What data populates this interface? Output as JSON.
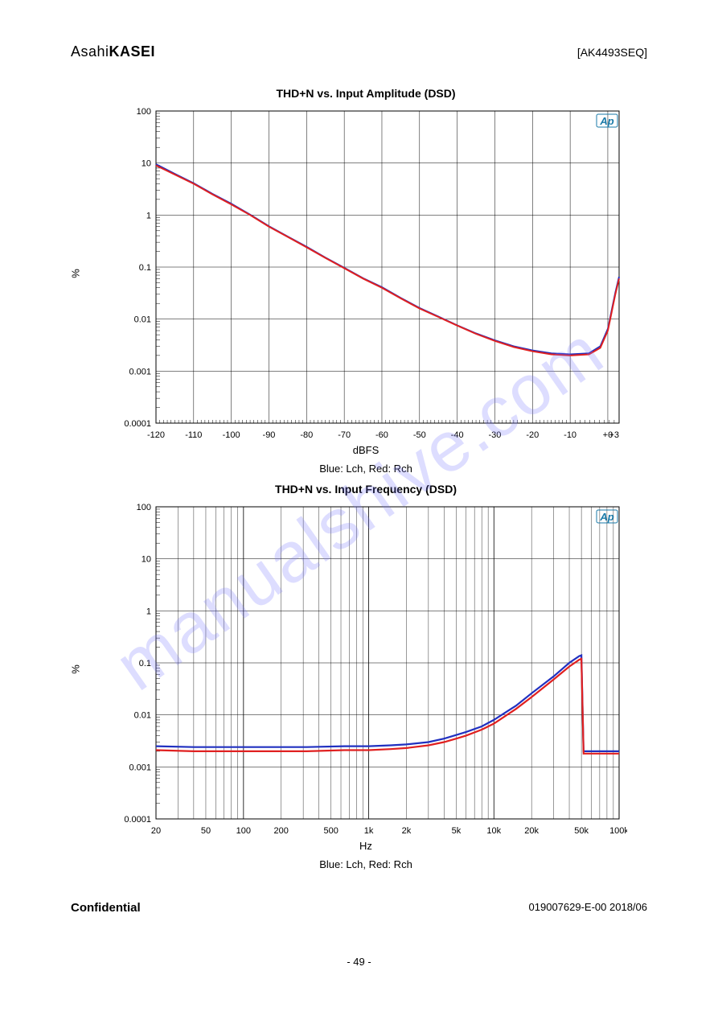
{
  "brand": {
    "asahi": "Asahi",
    "kasei": "KASEI"
  },
  "part_number": "[AK4493SEQ]",
  "watermark": "manualshive.com",
  "footer": "- 49 -",
  "confidential": "Confidential",
  "date_note": "019007629-E-00  2018/06",
  "chart1": {
    "title": "THD+N vs. Input Amplitude (DSD)",
    "xlabel": "dBFS",
    "ylabel": "%",
    "plot_bg": "#ffffff",
    "grid_color": "#000000",
    "series_colors": [
      "#e02020",
      "#2030c0"
    ],
    "badge": "Ap",
    "x_domain": [
      -120,
      3
    ],
    "x_ticks": [
      -120,
      -110,
      -100,
      -90,
      -80,
      -70,
      -60,
      -50,
      -40,
      -30,
      -20,
      -10,
      0
    ],
    "x_tick_labels": [
      "-120",
      "-110",
      "-100",
      "-90",
      "-80",
      "-70",
      "-60",
      "-50",
      "-40",
      "-30",
      "-20",
      "-10",
      "+0"
    ],
    "x_last_label": "+3",
    "y_domain_log": [
      0.0001,
      100
    ],
    "y_ticks_log": [
      0.0001,
      0.001,
      0.01,
      0.1,
      1,
      10,
      100
    ],
    "y_labels": [
      "0.0001",
      "0.001",
      "0.01",
      "0.1",
      "1",
      "10",
      "100"
    ],
    "colors_note": "“Blue: Lch, Red: Rch”",
    "colors_text": "Blue: Lch, Red: Rch",
    "series_red": [
      [
        -120,
        9
      ],
      [
        -115,
        6
      ],
      [
        -110,
        4
      ],
      [
        -105,
        2.5
      ],
      [
        -100,
        1.6
      ],
      [
        -95,
        1.0
      ],
      [
        -90,
        0.6
      ],
      [
        -85,
        0.38
      ],
      [
        -80,
        0.24
      ],
      [
        -75,
        0.15
      ],
      [
        -70,
        0.095
      ],
      [
        -65,
        0.06
      ],
      [
        -60,
        0.04
      ],
      [
        -55,
        0.025
      ],
      [
        -50,
        0.016
      ],
      [
        -45,
        0.011
      ],
      [
        -40,
        0.0075
      ],
      [
        -35,
        0.0052
      ],
      [
        -30,
        0.0038
      ],
      [
        -25,
        0.0029
      ],
      [
        -20,
        0.0024
      ],
      [
        -15,
        0.0021
      ],
      [
        -10,
        0.002
      ],
      [
        -5,
        0.0021
      ],
      [
        -2,
        0.0028
      ],
      [
        0,
        0.006
      ],
      [
        2,
        0.03
      ],
      [
        3,
        0.06
      ]
    ],
    "series_blue": [
      [
        -120,
        9.5
      ],
      [
        -115,
        6.2
      ],
      [
        -110,
        4.1
      ],
      [
        -105,
        2.55
      ],
      [
        -100,
        1.65
      ],
      [
        -95,
        1.02
      ],
      [
        -90,
        0.61
      ],
      [
        -85,
        0.385
      ],
      [
        -80,
        0.245
      ],
      [
        -75,
        0.152
      ],
      [
        -70,
        0.097
      ],
      [
        -65,
        0.061
      ],
      [
        -60,
        0.041
      ],
      [
        -55,
        0.0255
      ],
      [
        -50,
        0.0163
      ],
      [
        -45,
        0.0112
      ],
      [
        -40,
        0.0076
      ],
      [
        -35,
        0.0053
      ],
      [
        -30,
        0.0039
      ],
      [
        -25,
        0.003
      ],
      [
        -20,
        0.0025
      ],
      [
        -15,
        0.0022
      ],
      [
        -10,
        0.0021
      ],
      [
        -5,
        0.0022
      ],
      [
        -2,
        0.003
      ],
      [
        0,
        0.0065
      ],
      [
        2,
        0.032
      ],
      [
        3,
        0.065
      ]
    ]
  },
  "chart2": {
    "title": "THD+N vs. Input Frequency (DSD)",
    "xlabel": "Hz",
    "ylabel": "%",
    "badge": "Ap",
    "series_colors": [
      "#e02020",
      "#2030c0"
    ],
    "x_domain_log": [
      20,
      100000
    ],
    "x_ticks_log": [
      20,
      50,
      100,
      200,
      500,
      1000,
      2000,
      5000,
      10000,
      20000,
      50000,
      100000
    ],
    "x_tick_labels": [
      "20",
      "50",
      "100",
      "200",
      "500",
      "1k",
      "2k",
      "5k",
      "10k",
      "20k",
      "50k",
      "100k"
    ],
    "y_domain_log": [
      0.0001,
      100
    ],
    "y_ticks_log": [
      0.0001,
      0.001,
      0.01,
      0.1,
      1,
      10,
      100
    ],
    "y_labels": [
      "0.0001",
      "0.001",
      "0.01",
      "0.1",
      "1",
      "10",
      "100"
    ],
    "colors_text": "Blue: Lch, Red: Rch",
    "series_red": [
      [
        20,
        0.0021
      ],
      [
        40,
        0.002
      ],
      [
        80,
        0.002
      ],
      [
        160,
        0.002
      ],
      [
        320,
        0.002
      ],
      [
        640,
        0.0021
      ],
      [
        1000,
        0.0021
      ],
      [
        1500,
        0.0022
      ],
      [
        2000,
        0.0023
      ],
      [
        3000,
        0.0026
      ],
      [
        4000,
        0.003
      ],
      [
        5000,
        0.0035
      ],
      [
        6000,
        0.004
      ],
      [
        8000,
        0.0052
      ],
      [
        10000,
        0.0068
      ],
      [
        15000,
        0.013
      ],
      [
        20000,
        0.022
      ],
      [
        30000,
        0.048
      ],
      [
        40000,
        0.085
      ],
      [
        48000,
        0.115
      ],
      [
        50000,
        0.12
      ],
      [
        52000,
        0.0018
      ],
      [
        60000,
        0.0018
      ],
      [
        80000,
        0.0018
      ],
      [
        100000,
        0.0018
      ]
    ],
    "series_blue": [
      [
        20,
        0.0025
      ],
      [
        40,
        0.0024
      ],
      [
        80,
        0.0024
      ],
      [
        160,
        0.0024
      ],
      [
        320,
        0.0024
      ],
      [
        640,
        0.0025
      ],
      [
        1000,
        0.0025
      ],
      [
        1500,
        0.0026
      ],
      [
        2000,
        0.0027
      ],
      [
        3000,
        0.003
      ],
      [
        4000,
        0.0035
      ],
      [
        5000,
        0.0041
      ],
      [
        6000,
        0.0047
      ],
      [
        8000,
        0.006
      ],
      [
        10000,
        0.008
      ],
      [
        15000,
        0.015
      ],
      [
        20000,
        0.026
      ],
      [
        30000,
        0.055
      ],
      [
        40000,
        0.1
      ],
      [
        48000,
        0.135
      ],
      [
        50000,
        0.14
      ],
      [
        52000,
        0.002
      ],
      [
        60000,
        0.002
      ],
      [
        80000,
        0.002
      ],
      [
        100000,
        0.002
      ]
    ]
  }
}
